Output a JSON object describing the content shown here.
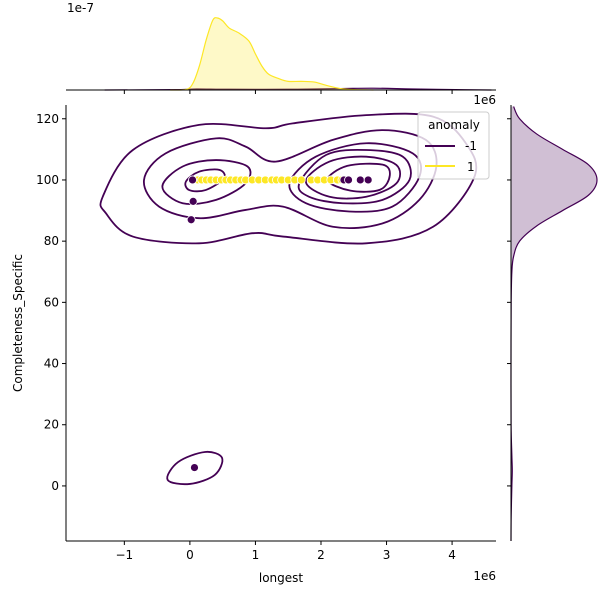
{
  "colors": {
    "neg": "#440154",
    "pos": "#fde725"
  },
  "chart_data": {
    "type": "scatter",
    "plot_kind": "jointplot with kde contours and marginal kde",
    "xlabel": "longest",
    "ylabel": "Completeness_Specific",
    "x_offset_label": "1e6",
    "top_marginal_offset_label": "1e-7",
    "xlim": [
      -1.89,
      4.67
    ],
    "ylim": [
      -18,
      124.5
    ],
    "xticks": [
      -1,
      0,
      1,
      2,
      3,
      4
    ],
    "xtick_labels": [
      "−1",
      "0",
      "1",
      "2",
      "3",
      "4"
    ],
    "yticks": [
      120,
      100,
      80,
      60,
      40,
      20,
      0
    ],
    "ytick_labels": [
      "120",
      "100",
      "80",
      "60",
      "40",
      "20",
      "0"
    ],
    "grid": false,
    "legend": {
      "title": "anomaly",
      "placement": "top-right",
      "entries": [
        {
          "label": "-1",
          "color": "#440154"
        },
        {
          "label": "1",
          "color": "#fde725"
        }
      ]
    },
    "series": [
      {
        "name": "1",
        "color": "#fde725",
        "points": [
          [
            0.12,
            100
          ],
          [
            0.18,
            100
          ],
          [
            0.25,
            100
          ],
          [
            0.32,
            100
          ],
          [
            0.4,
            100
          ],
          [
            0.48,
            100
          ],
          [
            0.55,
            100
          ],
          [
            0.62,
            100
          ],
          [
            0.7,
            100
          ],
          [
            0.78,
            100
          ],
          [
            0.85,
            100
          ],
          [
            0.95,
            100
          ],
          [
            1.05,
            100
          ],
          [
            1.15,
            100
          ],
          [
            1.25,
            100
          ],
          [
            1.32,
            100
          ],
          [
            1.4,
            100
          ],
          [
            1.5,
            100
          ],
          [
            1.6,
            100
          ],
          [
            1.7,
            100
          ],
          [
            1.85,
            100
          ],
          [
            1.95,
            100
          ],
          [
            2.05,
            100
          ],
          [
            2.15,
            100
          ],
          [
            2.25,
            100
          ],
          [
            2.32,
            100
          ],
          [
            2.4,
            100
          ]
        ]
      },
      {
        "name": "-1",
        "color": "#440154",
        "points": [
          [
            0.04,
            100
          ],
          [
            0.05,
            93
          ],
          [
            0.02,
            87
          ],
          [
            0.07,
            6
          ],
          [
            2.35,
            100
          ],
          [
            2.42,
            100
          ],
          [
            2.6,
            100
          ],
          [
            2.72,
            100
          ]
        ]
      }
    ],
    "kde_contours_neg": [
      [
        [
          -1.33,
          94.5
        ],
        [
          -0.87,
          109.8
        ],
        [
          0.14,
          118
        ],
        [
          1.16,
          116.9
        ],
        [
          1.57,
          118.5
        ],
        [
          2.69,
          121.2
        ],
        [
          3.71,
          120.7
        ],
        [
          4.21,
          112
        ],
        [
          4.34,
          101
        ],
        [
          3.71,
          84.7
        ],
        [
          2.69,
          79.3
        ],
        [
          1.42,
          81.5
        ],
        [
          0.96,
          82.6
        ],
        [
          0.14,
          79.3
        ],
        [
          -0.87,
          81.5
        ],
        [
          -1.28,
          89.1
        ]
      ],
      [
        [
          -0.7,
          100
        ],
        [
          -0.37,
          108.7
        ],
        [
          0.4,
          113.6
        ],
        [
          0.85,
          110.9
        ],
        [
          1.31,
          106
        ],
        [
          2.18,
          113.1
        ],
        [
          2.94,
          116.3
        ],
        [
          3.6,
          113.1
        ],
        [
          3.76,
          104.4
        ],
        [
          3.5,
          93.5
        ],
        [
          2.94,
          85.8
        ],
        [
          2.18,
          84.7
        ],
        [
          1.42,
          91.3
        ],
        [
          0.85,
          90.2
        ],
        [
          0.14,
          87.5
        ],
        [
          -0.47,
          91.3
        ]
      ],
      [
        [
          -0.42,
          97.8
        ],
        [
          -0.11,
          104.4
        ],
        [
          0.4,
          106.5
        ],
        [
          0.88,
          104.4
        ],
        [
          0.85,
          98.9
        ],
        [
          0.4,
          93.5
        ],
        [
          -0.11,
          92.4
        ]
      ],
      [
        [
          1.52,
          98.9
        ],
        [
          1.92,
          107.6
        ],
        [
          2.69,
          112
        ],
        [
          3.4,
          108.7
        ],
        [
          3.5,
          101
        ],
        [
          3.09,
          91.3
        ],
        [
          2.43,
          89.7
        ],
        [
          1.77,
          92.4
        ]
      ],
      [
        [
          -0.06,
          99.5
        ],
        [
          0.14,
          102.7
        ],
        [
          0.45,
          103.3
        ],
        [
          0.52,
          100.5
        ],
        [
          0.24,
          96.7
        ],
        [
          -0.01,
          96.7
        ]
      ],
      [
        [
          1.67,
          98.9
        ],
        [
          2.08,
          108.2
        ],
        [
          2.69,
          109.8
        ],
        [
          3.25,
          107.6
        ],
        [
          3.35,
          100
        ],
        [
          2.94,
          93.5
        ],
        [
          2.33,
          92.4
        ],
        [
          1.82,
          94.5
        ]
      ],
      [
        [
          1.77,
          99.5
        ],
        [
          2.13,
          106
        ],
        [
          2.69,
          107.6
        ],
        [
          3.15,
          104.9
        ],
        [
          3.15,
          98.9
        ],
        [
          2.69,
          94.5
        ],
        [
          2.13,
          94.5
        ]
      ],
      [
        [
          2.1,
          100
        ],
        [
          2.4,
          104.6
        ],
        [
          2.94,
          105
        ],
        [
          3.05,
          101.5
        ],
        [
          2.9,
          96.8
        ],
        [
          2.45,
          96.5
        ]
      ],
      [
        [
          -0.34,
          2.0
        ],
        [
          -0.18,
          7.8
        ],
        [
          0.23,
          11.1
        ],
        [
          0.49,
          9.2
        ],
        [
          0.38,
          3.6
        ],
        [
          0.0,
          0.65
        ]
      ]
    ],
    "marginal_x_density_pos": [
      [
        -0.3,
        0
      ],
      [
        -0.05,
        0.01
      ],
      [
        0.05,
        0.1
      ],
      [
        0.15,
        0.35
      ],
      [
        0.25,
        0.7
      ],
      [
        0.35,
        0.97
      ],
      [
        0.42,
        1.0
      ],
      [
        0.5,
        0.96
      ],
      [
        0.6,
        0.86
      ],
      [
        0.75,
        0.79
      ],
      [
        0.9,
        0.68
      ],
      [
        1.0,
        0.5
      ],
      [
        1.1,
        0.33
      ],
      [
        1.2,
        0.22
      ],
      [
        1.35,
        0.16
      ],
      [
        1.5,
        0.12
      ],
      [
        1.7,
        0.12
      ],
      [
        1.9,
        0.11
      ],
      [
        2.1,
        0.06
      ],
      [
        2.3,
        0.02
      ],
      [
        2.5,
        0.005
      ],
      [
        2.8,
        0
      ]
    ],
    "marginal_x_density_neg": [
      [
        -1.3,
        0
      ],
      [
        -0.2,
        0.005
      ],
      [
        0.1,
        0.015
      ],
      [
        0.6,
        0.01
      ],
      [
        1.5,
        0.01
      ],
      [
        2.3,
        0.02
      ],
      [
        2.8,
        0.025
      ],
      [
        3.4,
        0.015
      ],
      [
        4.2,
        0.003
      ],
      [
        4.6,
        0
      ]
    ],
    "marginal_y_density_neg": [
      [
        124,
        0.03
      ],
      [
        120,
        0.1
      ],
      [
        115,
        0.3
      ],
      [
        110,
        0.6
      ],
      [
        105,
        0.9
      ],
      [
        100,
        1.0
      ],
      [
        95,
        0.9
      ],
      [
        90,
        0.6
      ],
      [
        85,
        0.3
      ],
      [
        80,
        0.1
      ],
      [
        75,
        0.03
      ],
      [
        70,
        0.01
      ],
      [
        60,
        0.002
      ],
      [
        40,
        0
      ],
      [
        20,
        0.001
      ],
      [
        10,
        0.01
      ],
      [
        5,
        0.015
      ],
      [
        0,
        0.01
      ],
      [
        -10,
        0.002
      ],
      [
        -18,
        0
      ]
    ]
  }
}
